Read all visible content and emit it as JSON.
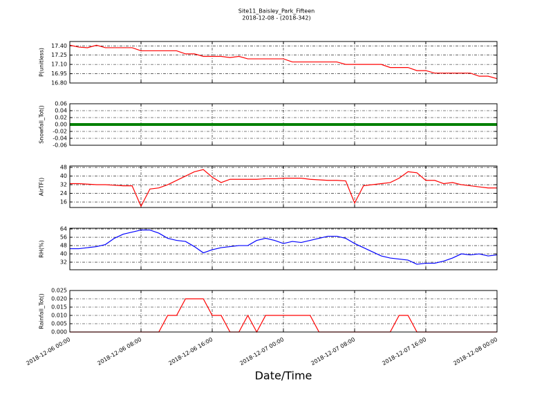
{
  "chart_data": [
    {
      "type": "line",
      "title": "Site11_Baisley_Park_Fifteen",
      "subtitle": "2018-12-08 - (2018-342)",
      "ylabel": "P(unitless)",
      "x": [
        "2018-12-06 00:00",
        "2018-12-06 01:00",
        "2018-12-06 02:00",
        "2018-12-06 03:00",
        "2018-12-06 04:00",
        "2018-12-06 05:00",
        "2018-12-06 06:00",
        "2018-12-06 07:00",
        "2018-12-06 08:00",
        "2018-12-06 09:00",
        "2018-12-06 10:00",
        "2018-12-06 11:00",
        "2018-12-06 12:00",
        "2018-12-06 13:00",
        "2018-12-06 14:00",
        "2018-12-06 15:00",
        "2018-12-06 16:00",
        "2018-12-06 17:00",
        "2018-12-06 18:00",
        "2018-12-06 19:00",
        "2018-12-06 20:00",
        "2018-12-06 21:00",
        "2018-12-06 22:00",
        "2018-12-06 23:00",
        "2018-12-07 00:00",
        "2018-12-07 01:00",
        "2018-12-07 02:00",
        "2018-12-07 03:00",
        "2018-12-07 04:00",
        "2018-12-07 05:00",
        "2018-12-07 06:00",
        "2018-12-07 07:00",
        "2018-12-07 08:00",
        "2018-12-07 09:00",
        "2018-12-07 10:00",
        "2018-12-07 11:00",
        "2018-12-07 12:00",
        "2018-12-07 13:00",
        "2018-12-07 14:00",
        "2018-12-07 15:00",
        "2018-12-07 16:00",
        "2018-12-07 17:00",
        "2018-12-07 18:00",
        "2018-12-07 19:00",
        "2018-12-07 20:00",
        "2018-12-07 21:00",
        "2018-12-07 22:00",
        "2018-12-07 23:00",
        "2018-12-08 00:00"
      ],
      "series": [
        {
          "name": "P(unitless)",
          "color": "#ff0000",
          "values": [
            17.41,
            17.38,
            17.37,
            17.41,
            17.37,
            17.37,
            17.37,
            17.37,
            17.32,
            17.32,
            17.32,
            17.32,
            17.32,
            17.27,
            17.27,
            17.23,
            17.23,
            17.23,
            17.21,
            17.23,
            17.19,
            17.19,
            17.19,
            17.19,
            17.19,
            17.14,
            17.14,
            17.14,
            17.14,
            17.14,
            17.14,
            17.1,
            17.1,
            17.1,
            17.1,
            17.1,
            17.05,
            17.05,
            17.05,
            17,
            17,
            16.96,
            16.96,
            16.96,
            16.96,
            16.96,
            16.91,
            16.91,
            16.87
          ]
        }
      ],
      "xlim": [
        "2018-12-06 00:00",
        "2018-12-08 00:00"
      ],
      "xticks": [
        "2018-12-06 00:00",
        "2018-12-06 08:00",
        "2018-12-06 16:00",
        "2018-12-07 00:00",
        "2018-12-07 08:00",
        "2018-12-07 16:00",
        "2018-12-08 00:00"
      ],
      "ylim": [
        16.8,
        17.47
      ],
      "yticks": [
        {
          "value": 16.8,
          "label": "16.80"
        },
        {
          "value": 16.95,
          "label": "16.95"
        },
        {
          "value": 17.1,
          "label": "17.10"
        },
        {
          "value": 17.25,
          "label": "17.25"
        },
        {
          "value": 17.4,
          "label": "17.40"
        }
      ],
      "grid": true
    },
    {
      "type": "line",
      "ylabel": "Snowfall_Tot()",
      "x": [
        "2018-12-06 00:00",
        "2018-12-06 01:00",
        "2018-12-06 02:00",
        "2018-12-06 03:00",
        "2018-12-06 04:00",
        "2018-12-06 05:00",
        "2018-12-06 06:00",
        "2018-12-06 07:00",
        "2018-12-06 08:00",
        "2018-12-06 09:00",
        "2018-12-06 10:00",
        "2018-12-06 11:00",
        "2018-12-06 12:00",
        "2018-12-06 13:00",
        "2018-12-06 14:00",
        "2018-12-06 15:00",
        "2018-12-06 16:00",
        "2018-12-06 17:00",
        "2018-12-06 18:00",
        "2018-12-06 19:00",
        "2018-12-06 20:00",
        "2018-12-06 21:00",
        "2018-12-06 22:00",
        "2018-12-06 23:00",
        "2018-12-07 00:00",
        "2018-12-07 01:00",
        "2018-12-07 02:00",
        "2018-12-07 03:00",
        "2018-12-07 04:00",
        "2018-12-07 05:00",
        "2018-12-07 06:00",
        "2018-12-07 07:00",
        "2018-12-07 08:00",
        "2018-12-07 09:00",
        "2018-12-07 10:00",
        "2018-12-07 11:00",
        "2018-12-07 12:00",
        "2018-12-07 13:00",
        "2018-12-07 14:00",
        "2018-12-07 15:00",
        "2018-12-07 16:00",
        "2018-12-07 17:00",
        "2018-12-07 18:00",
        "2018-12-07 19:00",
        "2018-12-07 20:00",
        "2018-12-07 21:00",
        "2018-12-07 22:00",
        "2018-12-07 23:00",
        "2018-12-08 00:00"
      ],
      "series": [
        {
          "name": "Snowfall_Tot()",
          "color": "#008000",
          "values": [
            0,
            0,
            0,
            0,
            0,
            0,
            0,
            0,
            0,
            0,
            0,
            0,
            0,
            0,
            0,
            0,
            0,
            0,
            0,
            0,
            0,
            0,
            0,
            0,
            0,
            0,
            0,
            0,
            0,
            0,
            0,
            0,
            0,
            0,
            0,
            0,
            0,
            0,
            0,
            0,
            0,
            0,
            0,
            0,
            0,
            0,
            0,
            0,
            0
          ]
        }
      ],
      "xlim": [
        "2018-12-06 00:00",
        "2018-12-08 00:00"
      ],
      "xticks": [
        "2018-12-06 00:00",
        "2018-12-06 08:00",
        "2018-12-06 16:00",
        "2018-12-07 00:00",
        "2018-12-07 08:00",
        "2018-12-07 16:00",
        "2018-12-08 00:00"
      ],
      "ylim": [
        -0.06,
        0.06
      ],
      "yticks": [
        -0.06,
        -0.04,
        -0.02,
        {
          "value": 0,
          "label": "0.00"
        },
        0.02,
        0.04,
        0.06
      ],
      "grid": true
    },
    {
      "type": "line",
      "ylabel": "AirTF()",
      "x": [
        "2018-12-06 00:00",
        "2018-12-06 01:00",
        "2018-12-06 02:00",
        "2018-12-06 03:00",
        "2018-12-06 04:00",
        "2018-12-06 05:00",
        "2018-12-06 06:00",
        "2018-12-06 07:00",
        "2018-12-06 08:00",
        "2018-12-06 09:00",
        "2018-12-06 10:00",
        "2018-12-06 11:00",
        "2018-12-06 12:00",
        "2018-12-06 13:00",
        "2018-12-06 14:00",
        "2018-12-06 15:00",
        "2018-12-06 16:00",
        "2018-12-06 17:00",
        "2018-12-06 18:00",
        "2018-12-06 19:00",
        "2018-12-06 20:00",
        "2018-12-06 21:00",
        "2018-12-06 22:00",
        "2018-12-06 23:00",
        "2018-12-07 00:00",
        "2018-12-07 01:00",
        "2018-12-07 02:00",
        "2018-12-07 03:00",
        "2018-12-07 04:00",
        "2018-12-07 05:00",
        "2018-12-07 06:00",
        "2018-12-07 07:00",
        "2018-12-07 08:00",
        "2018-12-07 09:00",
        "2018-12-07 10:00",
        "2018-12-07 11:00",
        "2018-12-07 12:00",
        "2018-12-07 13:00",
        "2018-12-07 14:00",
        "2018-12-07 15:00",
        "2018-12-07 16:00",
        "2018-12-07 17:00",
        "2018-12-07 18:00",
        "2018-12-07 19:00",
        "2018-12-07 20:00",
        "2018-12-07 21:00",
        "2018-12-07 22:00",
        "2018-12-07 23:00",
        "2018-12-08 00:00"
      ],
      "series": [
        {
          "name": "AirTF()",
          "color": "#ff0000",
          "values": [
            33,
            33,
            32.5,
            32,
            32,
            31.5,
            31,
            31,
            12,
            28,
            29,
            32,
            36,
            40,
            44,
            46,
            39,
            34,
            37,
            37,
            37,
            37,
            37.5,
            37.5,
            38,
            38,
            38,
            37,
            36.5,
            36,
            36,
            35.5,
            15,
            31,
            32,
            33,
            34,
            38,
            44,
            43,
            36,
            36,
            33,
            34,
            32,
            31,
            30,
            29,
            29
          ]
        }
      ],
      "xlim": [
        "2018-12-06 00:00",
        "2018-12-08 00:00"
      ],
      "xticks": [
        "2018-12-06 00:00",
        "2018-12-06 08:00",
        "2018-12-06 16:00",
        "2018-12-07 00:00",
        "2018-12-07 08:00",
        "2018-12-07 16:00",
        "2018-12-08 00:00"
      ],
      "ylim": [
        10.9,
        49.3
      ],
      "yticks": [
        16,
        24,
        32,
        40,
        48
      ],
      "grid": true
    },
    {
      "type": "line",
      "ylabel": "RH(%)",
      "x": [
        "2018-12-06 00:00",
        "2018-12-06 01:00",
        "2018-12-06 02:00",
        "2018-12-06 03:00",
        "2018-12-06 04:00",
        "2018-12-06 05:00",
        "2018-12-06 06:00",
        "2018-12-06 07:00",
        "2018-12-06 08:00",
        "2018-12-06 09:00",
        "2018-12-06 10:00",
        "2018-12-06 11:00",
        "2018-12-06 12:00",
        "2018-12-06 13:00",
        "2018-12-06 14:00",
        "2018-12-06 15:00",
        "2018-12-06 16:00",
        "2018-12-06 17:00",
        "2018-12-06 18:00",
        "2018-12-06 19:00",
        "2018-12-06 20:00",
        "2018-12-06 21:00",
        "2018-12-06 22:00",
        "2018-12-06 23:00",
        "2018-12-07 00:00",
        "2018-12-07 01:00",
        "2018-12-07 02:00",
        "2018-12-07 03:00",
        "2018-12-07 04:00",
        "2018-12-07 05:00",
        "2018-12-07 06:00",
        "2018-12-07 07:00",
        "2018-12-07 08:00",
        "2018-12-07 09:00",
        "2018-12-07 10:00",
        "2018-12-07 11:00",
        "2018-12-07 12:00",
        "2018-12-07 13:00",
        "2018-12-07 14:00",
        "2018-12-07 15:00",
        "2018-12-07 16:00",
        "2018-12-07 17:00",
        "2018-12-07 18:00",
        "2018-12-07 19:00",
        "2018-12-07 20:00",
        "2018-12-07 21:00",
        "2018-12-07 22:00",
        "2018-12-07 23:00",
        "2018-12-08 00:00"
      ],
      "series": [
        {
          "name": "RH(%)",
          "color": "#0000ff",
          "values": [
            45,
            45,
            46,
            47,
            49,
            55,
            59,
            61,
            63,
            63,
            60,
            55,
            53,
            52,
            47,
            41,
            44,
            46,
            47,
            48,
            48,
            53,
            55,
            53,
            50,
            52,
            51,
            53,
            55,
            57,
            57,
            55,
            50,
            46,
            42,
            38,
            36,
            35,
            34,
            30,
            31,
            31,
            33,
            36,
            40,
            39,
            40,
            38,
            39
          ]
        }
      ],
      "xlim": [
        "2018-12-06 00:00",
        "2018-12-08 00:00"
      ],
      "xticks": [
        "2018-12-06 00:00",
        "2018-12-06 08:00",
        "2018-12-06 16:00",
        "2018-12-07 00:00",
        "2018-12-07 08:00",
        "2018-12-07 16:00",
        "2018-12-08 00:00"
      ],
      "ylim": [
        24.7,
        64.7
      ],
      "yticks": [
        32,
        40,
        48,
        56,
        64
      ],
      "grid": true
    },
    {
      "type": "line",
      "ylabel": "Rainfall_Tot()",
      "xlabel": "Date/Time",
      "x": [
        "2018-12-06 00:00",
        "2018-12-06 01:00",
        "2018-12-06 02:00",
        "2018-12-06 03:00",
        "2018-12-06 04:00",
        "2018-12-06 05:00",
        "2018-12-06 06:00",
        "2018-12-06 07:00",
        "2018-12-06 08:00",
        "2018-12-06 09:00",
        "2018-12-06 10:00",
        "2018-12-06 11:00",
        "2018-12-06 12:00",
        "2018-12-06 13:00",
        "2018-12-06 14:00",
        "2018-12-06 15:00",
        "2018-12-06 16:00",
        "2018-12-06 17:00",
        "2018-12-06 18:00",
        "2018-12-06 19:00",
        "2018-12-06 20:00",
        "2018-12-06 21:00",
        "2018-12-06 22:00",
        "2018-12-06 23:00",
        "2018-12-07 00:00",
        "2018-12-07 01:00",
        "2018-12-07 02:00",
        "2018-12-07 03:00",
        "2018-12-07 04:00",
        "2018-12-07 05:00",
        "2018-12-07 06:00",
        "2018-12-07 07:00",
        "2018-12-07 08:00",
        "2018-12-07 09:00",
        "2018-12-07 10:00",
        "2018-12-07 11:00",
        "2018-12-07 12:00",
        "2018-12-07 13:00",
        "2018-12-07 14:00",
        "2018-12-07 15:00",
        "2018-12-07 16:00",
        "2018-12-07 17:00",
        "2018-12-07 18:00",
        "2018-12-07 19:00",
        "2018-12-07 20:00",
        "2018-12-07 21:00",
        "2018-12-07 22:00",
        "2018-12-07 23:00",
        "2018-12-08 00:00"
      ],
      "series": [
        {
          "name": "Rainfall_Tot()",
          "color": "#ff0000",
          "values": [
            0,
            0,
            0,
            0,
            0,
            0,
            0,
            0,
            0,
            0,
            0,
            0.01,
            0.01,
            0.02,
            0.02,
            0.02,
            0.01,
            0.01,
            0,
            0,
            0.01,
            0,
            0.01,
            0.01,
            0.01,
            0.01,
            0.01,
            0.01,
            0,
            0,
            0,
            0,
            0,
            0,
            0,
            0,
            0,
            0.01,
            0.01,
            0,
            0,
            0,
            0,
            0,
            0,
            0,
            0,
            0,
            0
          ]
        }
      ],
      "xlim": [
        "2018-12-06 00:00",
        "2018-12-08 00:00"
      ],
      "xticks": [
        "2018-12-06 00:00",
        "2018-12-06 08:00",
        "2018-12-06 16:00",
        "2018-12-07 00:00",
        "2018-12-07 08:00",
        "2018-12-07 16:00",
        "2018-12-08 00:00"
      ],
      "ylim": [
        0,
        0.025
      ],
      "yticks": [
        {
          "value": 0,
          "label": "0.000"
        },
        {
          "value": 0.005,
          "label": "0.005"
        },
        {
          "value": 0.01,
          "label": "0.010"
        },
        {
          "value": 0.015,
          "label": "0.015"
        },
        {
          "value": 0.02,
          "label": "0.020"
        },
        {
          "value": 0.025,
          "label": "0.025"
        }
      ],
      "grid": true
    }
  ]
}
